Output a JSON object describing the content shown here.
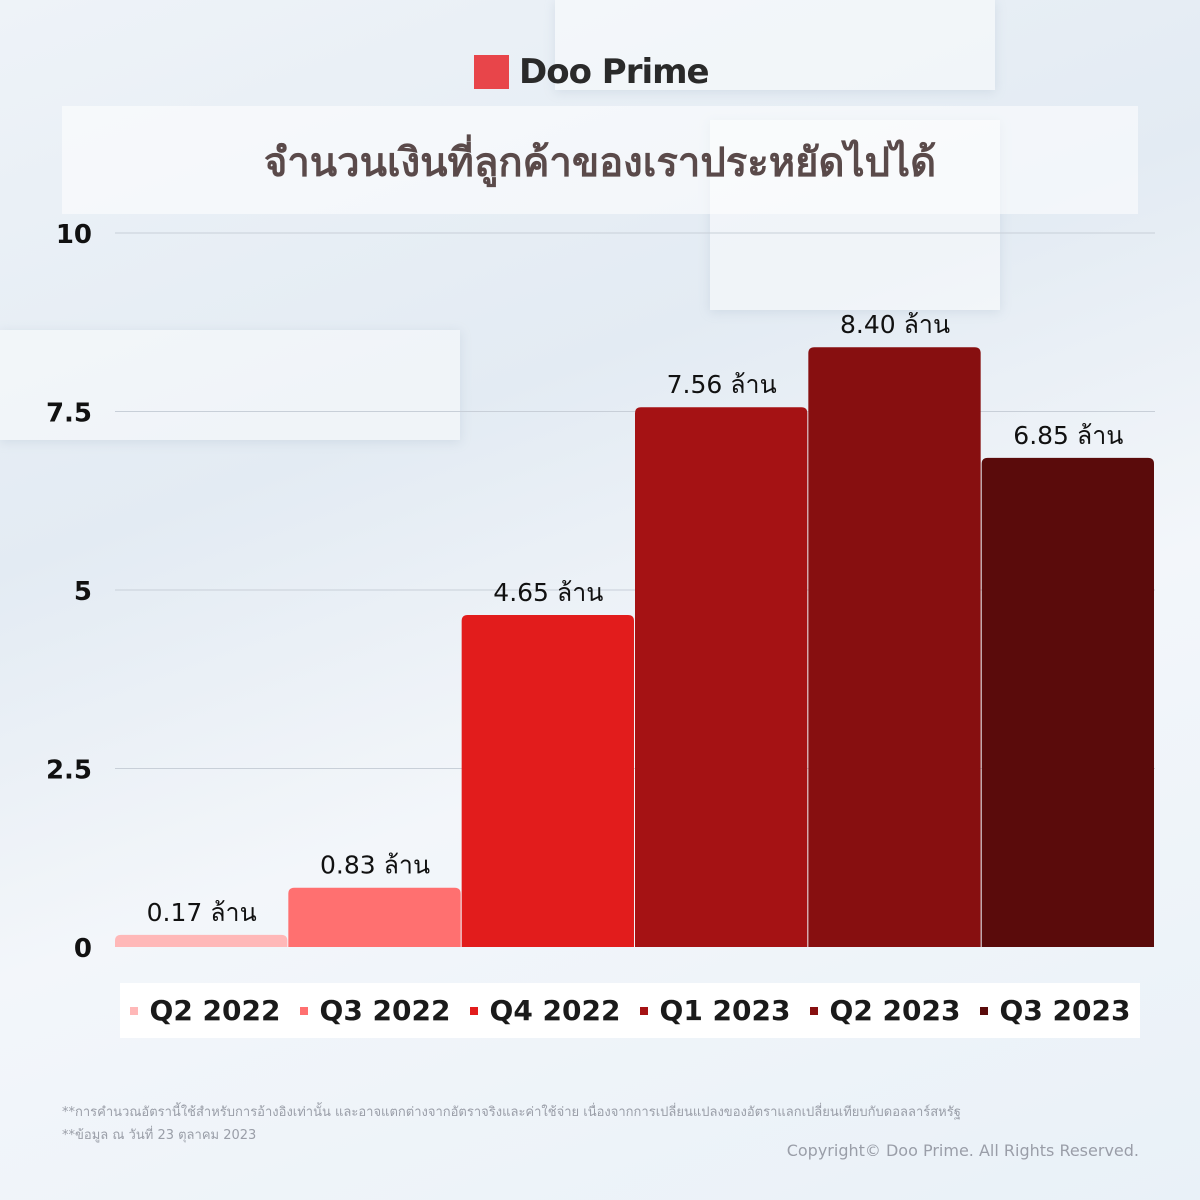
{
  "brand": {
    "name": "Doo Prime",
    "color": "#e8454a"
  },
  "chart_data": {
    "type": "bar",
    "title": "จำนวนเงินที่ลูกค้าของเราประหยัดไปได้",
    "categories": [
      "Q2 2022",
      "Q3 2022",
      "Q4 2022",
      "Q1 2023",
      "Q2 2023",
      "Q3 2023"
    ],
    "values": [
      0.17,
      0.83,
      4.65,
      7.56,
      8.4,
      6.85
    ],
    "data_labels": [
      "0.17 ล้าน",
      "0.83 ล้าน",
      "4.65 ล้าน",
      "7.56 ล้าน",
      "8.40 ล้าน",
      "6.85 ล้าน"
    ],
    "colors": [
      "#ffb8b8",
      "#ff7070",
      "#e21c1c",
      "#a51214",
      "#870f10",
      "#5a0b0b"
    ],
    "yticks": [
      "0",
      "2.5",
      "5",
      "7.5",
      "10"
    ],
    "ylim": [
      0,
      10
    ],
    "grid": true,
    "legend": "bottom"
  },
  "footer": {
    "note1": "**การคำนวณอัตรานี้ใช้สำหรับการอ้างอิงเท่านั้น และอาจแตกต่างจากอัตราจริงและค่าใช้จ่าย เนื่องจากการเปลี่ยนแปลงของอัตราแลกเปลี่ยนเทียบกับดอลลาร์สหรัฐ",
    "note2": "**ข้อมูล ณ วันที่ 23 ตุลาคม 2023",
    "copyright": "Copyright© Doo Prime. All Rights Reserved."
  }
}
